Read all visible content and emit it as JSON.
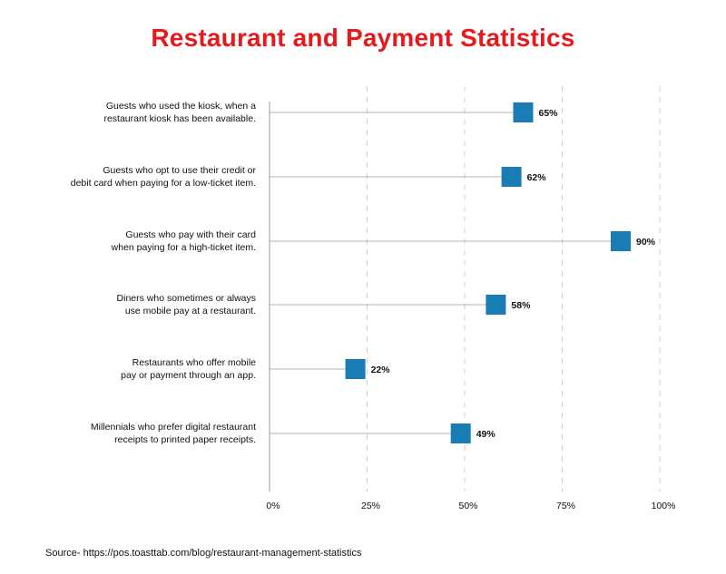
{
  "chart_data": {
    "type": "dot",
    "title": "Restaurant and Payment Statistics",
    "categories": [
      [
        "Guests who used the kiosk, when a",
        "restaurant kiosk has been available."
      ],
      [
        "Guests who opt to use their credit or",
        "debit card when paying for a low-ticket item."
      ],
      [
        "Guests who pay with their card",
        "when paying for a high-ticket item."
      ],
      [
        "Diners who sometimes or always",
        "use mobile pay at a restaurant."
      ],
      [
        "Restaurants who offer mobile",
        "pay or payment through an app."
      ],
      [
        "Millennials who prefer digital restaurant",
        "receipts to printed paper receipts."
      ]
    ],
    "values": [
      65,
      62,
      90,
      58,
      22,
      49
    ],
    "value_labels": [
      "65%",
      "62%",
      "90%",
      "58%",
      "22%",
      "49%"
    ],
    "xlim": [
      0,
      100
    ],
    "xticks": [
      0,
      25,
      50,
      75,
      100
    ],
    "xtick_labels": [
      "0%",
      "25%",
      "50%",
      "75%",
      "100%"
    ],
    "grid": true,
    "source": "Source- https://pos.toasttab.com/blog/restaurant-management-statistics"
  },
  "colors": {
    "title": "#e8191c",
    "marker": "#1a7cb5",
    "stem": "#b3b3b3",
    "grid": "#cccccc",
    "axis": "#999999"
  }
}
